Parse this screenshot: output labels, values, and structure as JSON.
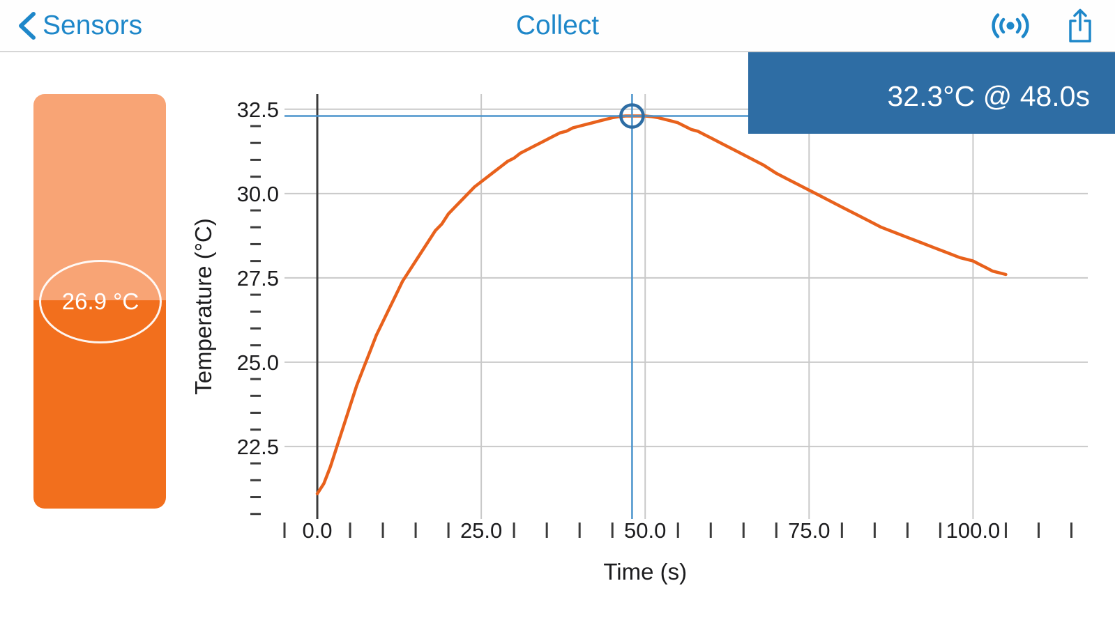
{
  "nav": {
    "back_label": "Sensors",
    "title": "Collect"
  },
  "sensor_card": {
    "reading": "26.9 °C"
  },
  "cursor_readout": {
    "text": "32.3°C @ 48.0s"
  },
  "chart_data": {
    "type": "line",
    "title": "",
    "xlabel": "Time (s)",
    "ylabel": "Temperature (°C)",
    "xlim": [
      -5,
      117.5
    ],
    "ylim": [
      20.35,
      32.95
    ],
    "xticks": [
      0,
      25,
      50,
      75,
      100
    ],
    "xtick_labels": [
      "0.0",
      "25.0",
      "50.0",
      "75.0",
      "100.0"
    ],
    "yticks": [
      22.5,
      25.0,
      27.5,
      30.0,
      32.5
    ],
    "ytick_labels": [
      "22.5",
      "25.0",
      "27.5",
      "30.0",
      "32.5"
    ],
    "minor_x_step": 5,
    "minor_y_step": 0.5,
    "grid": true,
    "series": [
      {
        "name": "Temperature",
        "points": [
          [
            0,
            21.1
          ],
          [
            1,
            21.4
          ],
          [
            2,
            21.9
          ],
          [
            3,
            22.5
          ],
          [
            4,
            23.1
          ],
          [
            5,
            23.7
          ],
          [
            6,
            24.3
          ],
          [
            7,
            24.8
          ],
          [
            8,
            25.3
          ],
          [
            9,
            25.8
          ],
          [
            10,
            26.2
          ],
          [
            11,
            26.6
          ],
          [
            12,
            27.0
          ],
          [
            13,
            27.4
          ],
          [
            14,
            27.7
          ],
          [
            15,
            28.0
          ],
          [
            16,
            28.3
          ],
          [
            17,
            28.6
          ],
          [
            18,
            28.9
          ],
          [
            19,
            29.1
          ],
          [
            20,
            29.4
          ],
          [
            21,
            29.6
          ],
          [
            22,
            29.8
          ],
          [
            23,
            30.0
          ],
          [
            24,
            30.2
          ],
          [
            25,
            30.35
          ],
          [
            26,
            30.5
          ],
          [
            27,
            30.65
          ],
          [
            28,
            30.8
          ],
          [
            29,
            30.95
          ],
          [
            30,
            31.05
          ],
          [
            31,
            31.2
          ],
          [
            32,
            31.3
          ],
          [
            33,
            31.4
          ],
          [
            34,
            31.5
          ],
          [
            35,
            31.6
          ],
          [
            36,
            31.7
          ],
          [
            37,
            31.8
          ],
          [
            38,
            31.85
          ],
          [
            39,
            31.95
          ],
          [
            40,
            32.0
          ],
          [
            41,
            32.05
          ],
          [
            42,
            32.1
          ],
          [
            43,
            32.15
          ],
          [
            44,
            32.2
          ],
          [
            45,
            32.25
          ],
          [
            46,
            32.28
          ],
          [
            47,
            32.3
          ],
          [
            48,
            32.3
          ],
          [
            49,
            32.3
          ],
          [
            50,
            32.3
          ],
          [
            51,
            32.28
          ],
          [
            52,
            32.25
          ],
          [
            53,
            32.2
          ],
          [
            54,
            32.15
          ],
          [
            55,
            32.1
          ],
          [
            56,
            32.0
          ],
          [
            57,
            31.9
          ],
          [
            58,
            31.85
          ],
          [
            59,
            31.75
          ],
          [
            60,
            31.65
          ],
          [
            62,
            31.45
          ],
          [
            64,
            31.25
          ],
          [
            66,
            31.05
          ],
          [
            68,
            30.85
          ],
          [
            70,
            30.6
          ],
          [
            72,
            30.4
          ],
          [
            74,
            30.2
          ],
          [
            76,
            30.0
          ],
          [
            78,
            29.8
          ],
          [
            80,
            29.6
          ],
          [
            82,
            29.4
          ],
          [
            84,
            29.2
          ],
          [
            86,
            29.0
          ],
          [
            88,
            28.85
          ],
          [
            90,
            28.7
          ],
          [
            92,
            28.55
          ],
          [
            94,
            28.4
          ],
          [
            96,
            28.25
          ],
          [
            98,
            28.1
          ],
          [
            100,
            28.0
          ],
          [
            101,
            27.9
          ],
          [
            102,
            27.8
          ],
          [
            103,
            27.7
          ],
          [
            104,
            27.65
          ],
          [
            105,
            27.6
          ]
        ]
      }
    ],
    "cursor": {
      "time": 48.0,
      "value": 32.3,
      "label": "32.3°C @ 48.0s"
    }
  },
  "colors": {
    "accent_blue": "#1e87c9",
    "readout_bg": "#2e6da4",
    "readout_text": "#ffffff",
    "card_light": "#f8a475",
    "card_dark": "#f26f1d",
    "curve_orange": "#e8611c",
    "cursor_blue": "#4a93cc",
    "cursor_ring": "#2e6da4",
    "grid_gray": "#c9c9c9",
    "axis_dark": "#3c3c3c",
    "tick_text": "#1c1c1e"
  }
}
